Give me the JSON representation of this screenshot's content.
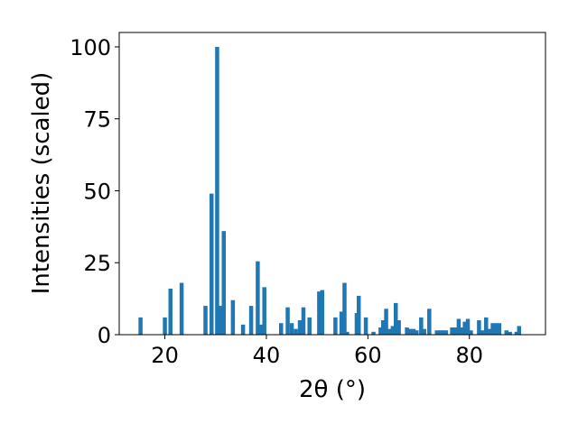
{
  "chart_data": {
    "type": "bar",
    "xlabel": "2θ (°)",
    "ylabel": "Intensities (scaled)",
    "xlim": [
      11,
      95
    ],
    "ylim": [
      0,
      105
    ],
    "xticks": [
      20,
      40,
      60,
      80
    ],
    "yticks": [
      0,
      25,
      50,
      75,
      100
    ],
    "xtick_labels": [
      "20",
      "40",
      "60",
      "80"
    ],
    "ytick_labels": [
      "0",
      "25",
      "50",
      "75",
      "100"
    ],
    "bar_width": 0.8,
    "color": "#1f77b4",
    "grid": false,
    "x": [
      15.2,
      20.0,
      21.1,
      23.3,
      28.0,
      29.2,
      30.3,
      30.9,
      31.6,
      33.4,
      35.4,
      37.0,
      38.3,
      38.9,
      39.6,
      42.9,
      44.2,
      45.0,
      45.8,
      46.6,
      47.3,
      48.5,
      50.4,
      51.0,
      53.6,
      54.8,
      55.4,
      55.9,
      57.8,
      58.2,
      59.6,
      61.1,
      62.5,
      63.0,
      63.6,
      64.3,
      64.9,
      65.5,
      66.1,
      67.7,
      68.3,
      69.0,
      69.6,
      70.5,
      71.1,
      72.1,
      73.6,
      74.2,
      74.8,
      75.4,
      76.6,
      77.2,
      77.9,
      78.5,
      79.1,
      79.7,
      80.3,
      81.9,
      82.6,
      83.3,
      83.9,
      84.6,
      85.2,
      85.9,
      87.3,
      88.0,
      89.3,
      89.8
    ],
    "values": [
      6,
      6,
      16,
      18,
      10,
      49,
      100,
      10,
      36,
      12,
      3.5,
      10,
      25.5,
      3.5,
      16.5,
      4,
      9.5,
      4,
      2,
      5,
      9.5,
      6,
      15,
      15.5,
      6,
      8,
      18,
      1,
      7.5,
      13.5,
      6,
      1,
      2.5,
      5,
      9,
      2,
      3,
      11,
      5,
      2.5,
      2,
      2,
      1.5,
      6,
      2,
      9,
      1.5,
      1.5,
      1.5,
      1.5,
      2.5,
      2.5,
      5.5,
      2.5,
      4.5,
      5.5,
      1.5,
      5,
      1.5,
      6,
      2,
      4,
      4,
      4,
      1.5,
      1,
      1,
      3
    ]
  }
}
